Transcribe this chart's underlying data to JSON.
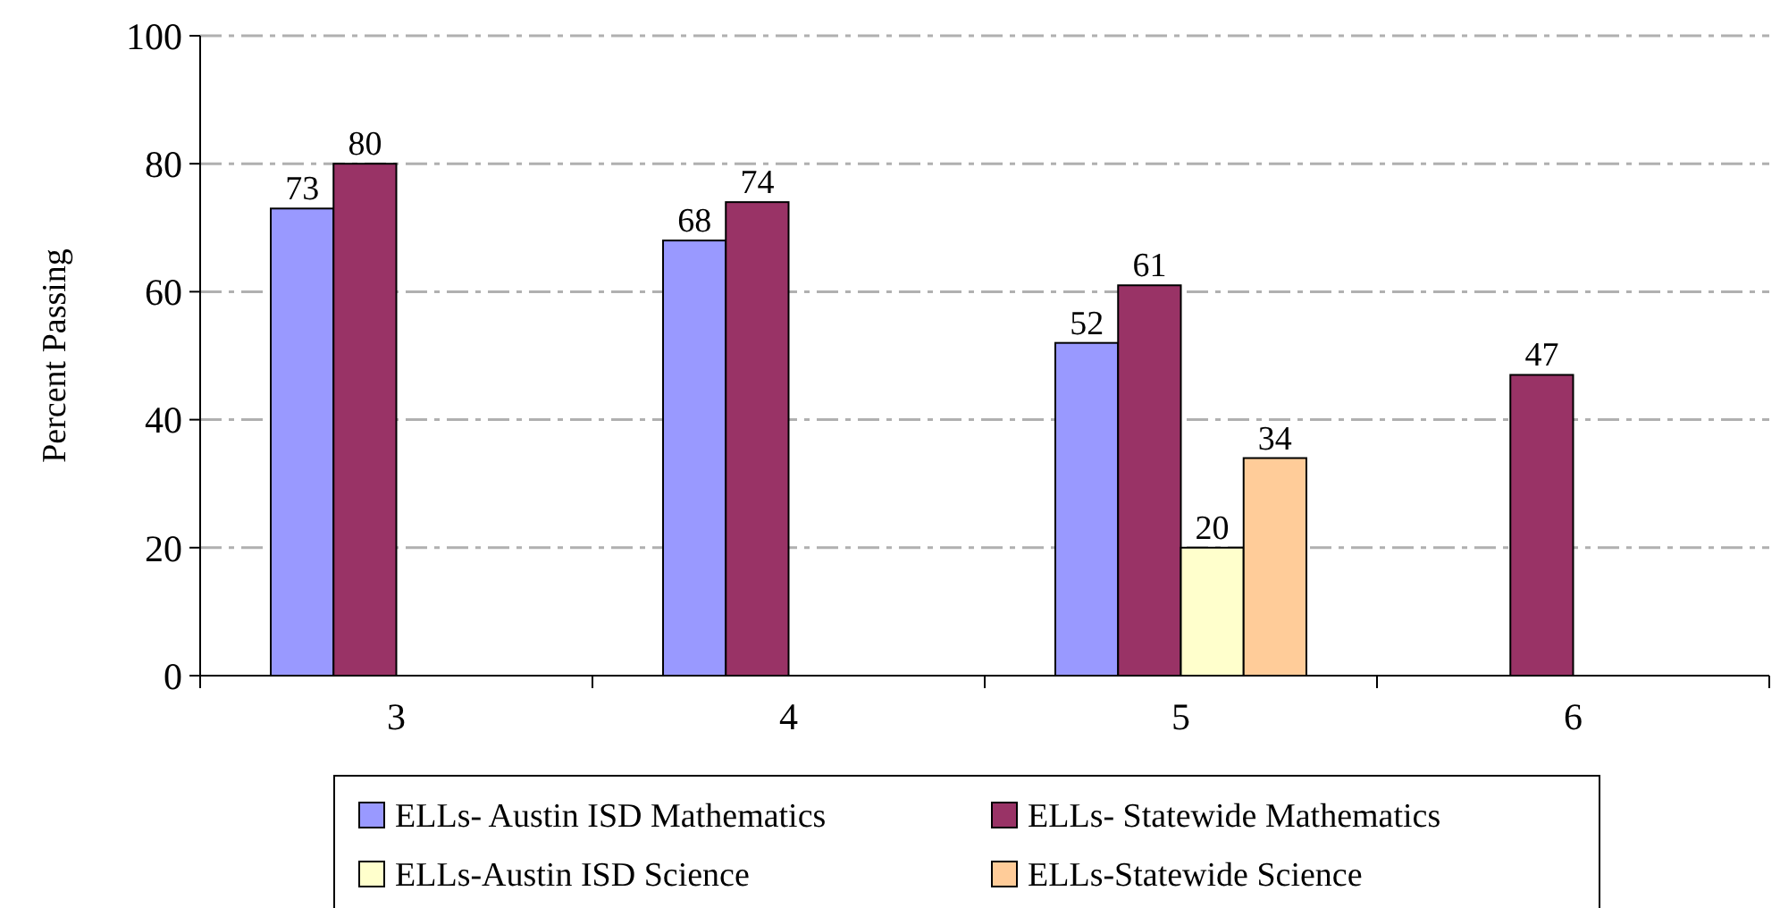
{
  "chart_data": {
    "type": "bar",
    "ylabel": "Percent Passing",
    "categories": [
      "3",
      "4",
      "5",
      "6"
    ],
    "series": [
      {
        "name": "ELLs- Austin ISD Mathematics",
        "color": "#9999ff",
        "values": [
          73,
          68,
          52,
          null
        ]
      },
      {
        "name": "ELLs- Statewide Mathematics",
        "color": "#993366",
        "values": [
          80,
          74,
          61,
          47
        ]
      },
      {
        "name": "ELLs-Austin ISD Science",
        "color": "#ffffcc",
        "values": [
          null,
          null,
          20,
          null
        ]
      },
      {
        "name": "ELLs-Statewide Science",
        "color": "#ffcc99",
        "values": [
          null,
          null,
          34,
          null
        ]
      }
    ],
    "ylim": [
      0,
      100
    ],
    "yticks": [
      0,
      20,
      40,
      60,
      80,
      100
    ],
    "grid": "y",
    "legend": "bottom",
    "data_labels": true
  }
}
